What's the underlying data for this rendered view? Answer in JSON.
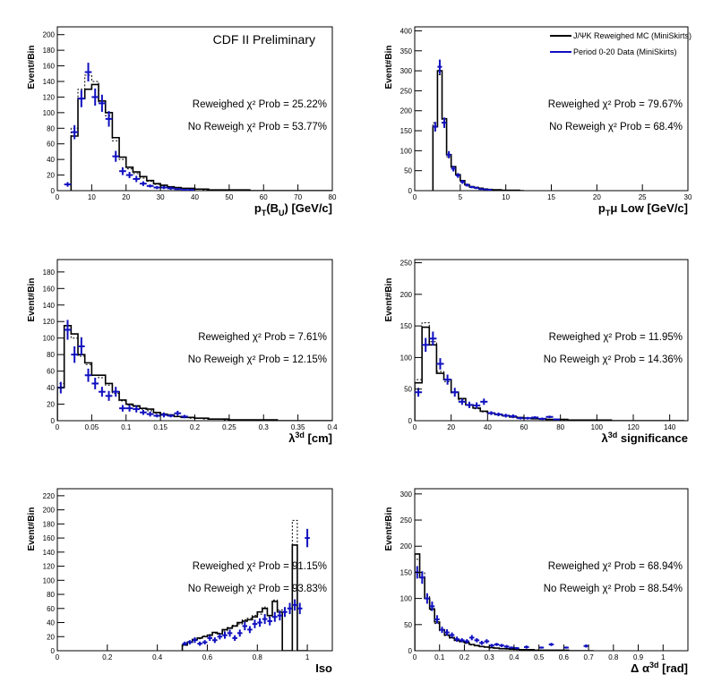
{
  "figure": {
    "preliminary_label": "CDF II Preliminary",
    "legend": [
      {
        "label": "J/ΨK Reweighed MC (MiniSkirts)",
        "color": "#000000"
      },
      {
        "label": "Period 0-20 Data (MiniSkirts)",
        "color": "#1010c0"
      }
    ]
  },
  "chart_data": [
    {
      "type": "histogram",
      "ylabel": "Event#Bin",
      "xlabel_parts": [
        "p",
        "T",
        "(B",
        "U",
        ") [GeV/c]"
      ],
      "xlim": [
        0,
        80
      ],
      "ylim": [
        0,
        210
      ],
      "xticks": [
        0,
        10,
        20,
        30,
        40,
        50,
        60,
        70,
        80
      ],
      "yticks": [
        0,
        20,
        40,
        60,
        80,
        100,
        120,
        140,
        160,
        180,
        200
      ],
      "chi2_reweighed": "Reweighed χ² Prob = 25.22%",
      "chi2_noreweigh": "No Reweigh χ² Prob = 53.77%",
      "bin_width": 2,
      "mc_start": 4,
      "mc_values": [
        70,
        118,
        130,
        136,
        115,
        100,
        68,
        43,
        30,
        24,
        18,
        13,
        9,
        7,
        5,
        4,
        3,
        3,
        2,
        2,
        1,
        1,
        1,
        1,
        1,
        1,
        0,
        0,
        0,
        0,
        0,
        0,
        0,
        0,
        0,
        0,
        0,
        0
      ],
      "dotted_values": [
        80,
        130,
        148,
        140,
        112,
        96,
        64,
        40,
        28,
        22,
        16,
        12,
        8,
        6,
        5,
        4,
        3,
        2,
        2,
        1,
        1,
        1,
        1,
        1,
        1,
        0,
        0,
        0,
        0,
        0,
        0,
        0,
        0,
        0,
        0,
        0,
        0,
        0
      ],
      "data_x": [
        3,
        5,
        7,
        9,
        11,
        13,
        15,
        17,
        19,
        21,
        23,
        25,
        27,
        29,
        31,
        33,
        35,
        37,
        39
      ],
      "data_y": [
        8,
        75,
        118,
        152,
        120,
        112,
        92,
        44,
        25,
        20,
        15,
        9,
        6,
        4,
        4,
        3,
        2,
        1,
        1
      ],
      "data_err": [
        3,
        9,
        11,
        12,
        11,
        11,
        10,
        7,
        5,
        4,
        4,
        3,
        2,
        2,
        2,
        2,
        1,
        1,
        1
      ]
    },
    {
      "type": "histogram",
      "ylabel": "Event#Bin",
      "xlabel_parts": [
        "p",
        "T",
        "μ Low [GeV/c]"
      ],
      "xlim": [
        0,
        30
      ],
      "ylim": [
        0,
        410
      ],
      "xticks": [
        0,
        5,
        10,
        15,
        20,
        25,
        30
      ],
      "yticks": [
        0,
        50,
        100,
        150,
        200,
        250,
        300,
        350,
        400
      ],
      "chi2_reweighed": "Reweighed χ² Prob = 79.67%",
      "chi2_noreweigh": "No Reweigh χ² Prob = 68.4%",
      "bin_width": 0.5,
      "mc_start": 2,
      "mc_values": [
        160,
        300,
        180,
        90,
        60,
        40,
        25,
        15,
        10,
        8,
        6,
        4,
        3,
        2,
        2,
        1,
        1,
        1,
        1,
        0
      ],
      "dotted_values": [
        170,
        290,
        170,
        85,
        55,
        38,
        22,
        14,
        9,
        7,
        5,
        4,
        3,
        2,
        1,
        1,
        1,
        0,
        0,
        0
      ],
      "data_x": [
        2.25,
        2.75,
        3.25,
        3.75,
        4.25,
        4.75,
        5.25,
        5.75,
        6.25,
        6.75,
        7.25,
        7.75,
        8.25
      ],
      "data_y": [
        160,
        310,
        170,
        90,
        55,
        38,
        22,
        14,
        9,
        7,
        4,
        3,
        2
      ],
      "data_err": [
        12,
        18,
        13,
        9,
        7,
        6,
        5,
        4,
        3,
        3,
        2,
        2,
        1
      ]
    },
    {
      "type": "histogram",
      "ylabel": "Event#Bin",
      "xlabel_parts": [
        "λ",
        "3d",
        " [cm]"
      ],
      "xlim": [
        0,
        0.4
      ],
      "ylim": [
        0,
        195
      ],
      "xticks": [
        0,
        0.05,
        0.1,
        0.15,
        0.2,
        0.25,
        0.3,
        0.35,
        0.4
      ],
      "yticks": [
        0,
        20,
        40,
        60,
        80,
        100,
        120,
        140,
        160,
        180
      ],
      "chi2_reweighed": "Reweighed χ² Prob = 7.61%",
      "chi2_noreweigh": "No Reweigh χ² Prob = 12.15%",
      "bin_width": 0.01,
      "mc_start": 0,
      "mc_values": [
        40,
        115,
        105,
        80,
        70,
        55,
        55,
        45,
        35,
        25,
        20,
        18,
        15,
        14,
        10,
        8,
        7,
        5,
        4,
        4,
        3,
        3,
        2,
        2,
        2,
        1,
        1,
        1,
        1,
        1,
        1,
        1,
        0,
        0,
        0,
        0,
        0,
        0,
        0,
        0
      ],
      "dotted_values": [
        45,
        110,
        100,
        78,
        68,
        55,
        52,
        43,
        33,
        24,
        19,
        17,
        14,
        12,
        9,
        7,
        6,
        5,
        4,
        3,
        3,
        2,
        2,
        2,
        1,
        1,
        1,
        1,
        1,
        1,
        1,
        0,
        0,
        0,
        0,
        0,
        0,
        0,
        0,
        0
      ],
      "data_x": [
        0.005,
        0.015,
        0.025,
        0.035,
        0.045,
        0.055,
        0.065,
        0.075,
        0.085,
        0.095,
        0.105,
        0.115,
        0.125,
        0.135,
        0.145,
        0.155,
        0.165,
        0.175,
        0.185
      ],
      "data_y": [
        40,
        110,
        80,
        90,
        55,
        45,
        35,
        30,
        35,
        15,
        15,
        14,
        10,
        8,
        6,
        7,
        6,
        9,
        5
      ],
      "data_err": [
        7,
        12,
        10,
        11,
        8,
        7,
        6,
        6,
        6,
        4,
        4,
        4,
        3,
        3,
        2,
        3,
        2,
        3,
        2
      ]
    },
    {
      "type": "histogram",
      "ylabel": "Event#Bin",
      "xlabel_parts": [
        "λ",
        "3d",
        " significance"
      ],
      "xlim": [
        0,
        150
      ],
      "ylim": [
        0,
        255
      ],
      "xticks": [
        0,
        20,
        40,
        60,
        80,
        100,
        120,
        140
      ],
      "yticks": [
        0,
        50,
        100,
        150,
        200,
        250
      ],
      "chi2_reweighed": "Reweighed χ² Prob = 11.95%",
      "chi2_noreweigh": "No Reweigh χ² Prob = 14.36%",
      "bin_width": 4,
      "mc_start": 0,
      "mc_values": [
        60,
        148,
        120,
        75,
        65,
        45,
        35,
        25,
        20,
        15,
        12,
        10,
        8,
        6,
        5,
        4,
        3,
        3,
        2,
        2,
        2,
        1,
        1,
        1,
        1,
        1,
        1,
        0,
        0,
        0,
        0,
        0,
        0,
        0,
        0,
        0,
        0
      ],
      "dotted_values": [
        65,
        155,
        125,
        78,
        62,
        44,
        33,
        24,
        19,
        14,
        11,
        9,
        7,
        6,
        5,
        4,
        3,
        2,
        2,
        2,
        1,
        1,
        1,
        1,
        1,
        1,
        0,
        0,
        0,
        0,
        0,
        0,
        0,
        0,
        0,
        0,
        0
      ],
      "data_x": [
        2,
        6,
        10,
        14,
        18,
        22,
        26,
        30,
        34,
        38,
        42,
        46,
        50,
        54,
        58,
        62,
        66,
        70,
        74,
        78
      ],
      "data_y": [
        45,
        120,
        130,
        90,
        65,
        45,
        30,
        25,
        24,
        30,
        12,
        10,
        8,
        7,
        4,
        4,
        5,
        3,
        6,
        2
      ],
      "data_err": [
        7,
        11,
        11,
        9,
        8,
        7,
        5,
        5,
        5,
        5,
        3,
        3,
        3,
        3,
        2,
        2,
        2,
        2,
        2,
        1
      ]
    },
    {
      "type": "histogram",
      "ylabel": "Event#Bin",
      "xlabel_parts": [
        "Iso"
      ],
      "xlim": [
        0,
        1.1
      ],
      "ylim": [
        0,
        230
      ],
      "xticks": [
        0,
        0.2,
        0.4,
        0.6,
        0.8,
        1.0
      ],
      "yticks": [
        0,
        20,
        40,
        60,
        80,
        100,
        120,
        140,
        160,
        180,
        200,
        220
      ],
      "chi2_reweighed": "Reweighed χ² Prob = 91.15%",
      "chi2_noreweigh": "No Reweigh χ² Prob = 93.83%",
      "bin_width": 0.02,
      "mc_start": 0.5,
      "mc_values": [
        8,
        12,
        16,
        18,
        20,
        22,
        26,
        24,
        30,
        32,
        35,
        40,
        42,
        44,
        48,
        55,
        60,
        50,
        70,
        55,
        0,
        0,
        150,
        0,
        0
      ],
      "dotted_values": [
        9,
        13,
        15,
        17,
        21,
        23,
        25,
        25,
        28,
        33,
        36,
        38,
        44,
        46,
        50,
        52,
        62,
        48,
        72,
        58,
        0,
        0,
        185,
        0,
        0
      ],
      "data_x": [
        0.51,
        0.53,
        0.55,
        0.57,
        0.59,
        0.61,
        0.63,
        0.65,
        0.67,
        0.69,
        0.71,
        0.73,
        0.75,
        0.77,
        0.79,
        0.81,
        0.83,
        0.85,
        0.87,
        0.89,
        0.91,
        0.93,
        0.95,
        0.97,
        1.0
      ],
      "data_y": [
        10,
        12,
        15,
        10,
        12,
        18,
        15,
        20,
        22,
        25,
        18,
        25,
        35,
        30,
        38,
        40,
        45,
        42,
        48,
        50,
        55,
        60,
        65,
        60,
        160
      ],
      "data_err": [
        3,
        3,
        4,
        3,
        3,
        4,
        4,
        4,
        5,
        5,
        4,
        5,
        6,
        5,
        6,
        6,
        7,
        6,
        7,
        7,
        7,
        8,
        8,
        8,
        13
      ]
    },
    {
      "type": "histogram",
      "ylabel": "Event#Bin",
      "xlabel_parts": [
        "Δ α",
        "3d",
        " [rad]"
      ],
      "xlim": [
        0,
        1.1
      ],
      "ylim": [
        0,
        310
      ],
      "xticks": [
        0,
        0.1,
        0.2,
        0.3,
        0.4,
        0.5,
        0.6,
        0.7,
        0.8,
        0.9,
        1
      ],
      "yticks": [
        0,
        50,
        100,
        150,
        200,
        250,
        300
      ],
      "chi2_reweighed": "Reweighed χ² Prob = 68.94%",
      "chi2_noreweigh": "No Reweigh χ² Prob = 88.54%",
      "bin_width": 0.02,
      "mc_start": 0,
      "mc_values": [
        185,
        140,
        100,
        80,
        55,
        40,
        30,
        25,
        20,
        18,
        15,
        12,
        10,
        8,
        7,
        6,
        5,
        4,
        4,
        3,
        3,
        2,
        2,
        2,
        1,
        1,
        1,
        1,
        1,
        1,
        1,
        0,
        0,
        0,
        0,
        0
      ],
      "dotted_values": [
        175,
        150,
        105,
        78,
        52,
        38,
        29,
        24,
        19,
        17,
        14,
        11,
        9,
        8,
        7,
        5,
        5,
        4,
        3,
        3,
        2,
        2,
        2,
        1,
        1,
        1,
        1,
        1,
        1,
        1,
        0,
        0,
        0,
        0,
        0,
        0
      ],
      "data_x": [
        0.01,
        0.03,
        0.05,
        0.07,
        0.09,
        0.11,
        0.13,
        0.15,
        0.17,
        0.19,
        0.21,
        0.23,
        0.25,
        0.27,
        0.29,
        0.31,
        0.33,
        0.35,
        0.37,
        0.39,
        0.41,
        0.45,
        0.51,
        0.55,
        0.61,
        0.69
      ],
      "data_y": [
        150,
        140,
        100,
        85,
        60,
        40,
        35,
        30,
        22,
        20,
        18,
        25,
        20,
        15,
        18,
        10,
        12,
        10,
        8,
        6,
        5,
        7,
        6,
        12,
        6,
        9
      ],
      "data_err": [
        12,
        12,
        10,
        9,
        8,
        6,
        6,
        5,
        5,
        4,
        4,
        5,
        4,
        4,
        4,
        3,
        3,
        3,
        3,
        2,
        2,
        3,
        2,
        3,
        2,
        3
      ]
    }
  ]
}
